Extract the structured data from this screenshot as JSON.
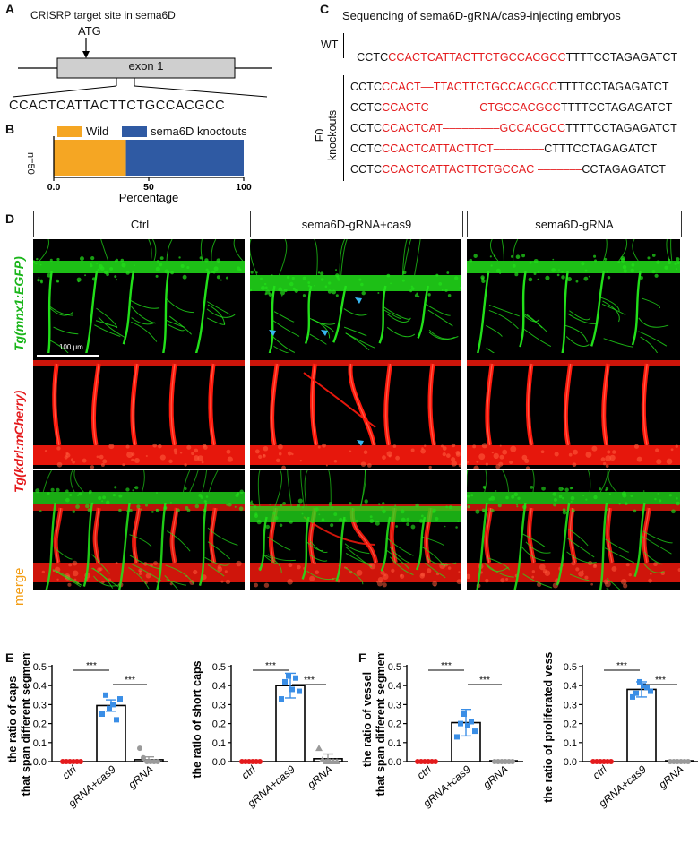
{
  "panels": {
    "A": {
      "letter": "A",
      "title": "CRISRP target site in sema6D",
      "atg": "ATG",
      "exon": "exon 1",
      "target_seq": "CCACTCATTACTTCTGCCACGCC"
    },
    "B": {
      "letter": "B",
      "legend_wild": "Wild",
      "legend_ko": "sema6D knoctouts",
      "n_label": "n=50",
      "xlabel": "Percentage",
      "ticks": [
        "0.0",
        "50",
        "100"
      ],
      "wild_pct": 38,
      "color_wild": "#f5a623",
      "color_ko": "#2f5aa3"
    },
    "C": {
      "letter": "C",
      "title": "Sequencing of sema6D-gRNA/cas9-injecting embryos",
      "wt_label": "WT",
      "f0_label": "F0",
      "ko_label": "knockouts",
      "wt": {
        "pre": "CCTC",
        "red": "CCACTCATTACTTCTGCCACGCC",
        "post": "TTTTCCTAGAGATCT"
      },
      "rows": [
        {
          "pre": "CCTC",
          "red": "CCACT––TTACTTCTGCCACGCC",
          "post": "TTTTCCTAGAGATCT"
        },
        {
          "pre": "CCTC",
          "red": "CCACTC––––––––CTGCCACGCC",
          "post": "TTTTCCTAGAGATCT"
        },
        {
          "pre": "CCTC",
          "red": "CCACTCAT–––––––––GCCACGCC",
          "post": "TTTTCCTAGAGATCT"
        },
        {
          "pre": "CCTC",
          "red": "CCACTCATTACTTCT––––––––",
          "post": "CTTTCCTAGAGATCT"
        },
        {
          "pre": "CCTC",
          "red": "CCACTCATTACTTCTGCCAC –––––––",
          "post": "CCTAGAGATCT"
        }
      ]
    },
    "D": {
      "letter": "D",
      "columns": [
        "Ctrl",
        "sema6D-gRNA+cas9",
        "sema6D-gRNA"
      ],
      "row_labels": [
        "Tg(mnx1:EGFP)",
        "Tg(kdrl:mCherry)",
        "merge"
      ],
      "scale_bar": "100 μm",
      "color_green": "#22e01a",
      "color_red": "#ff1a0d",
      "color_merge_label": "#f39c12",
      "color_arrow": "#38b6f0"
    },
    "E": {
      "letter": "E"
    },
    "F": {
      "letter": "F"
    }
  },
  "chart_data": [
    {
      "type": "bar",
      "ylabel": "the ratio of caps that span different segments",
      "categories": [
        "ctrl",
        "gRNA+cas9",
        "gRNA"
      ],
      "values": [
        0.0,
        0.295,
        0.01
      ],
      "errors": [
        0.0,
        0.03,
        0.015
      ],
      "ylim": [
        0,
        0.5
      ],
      "yticks": [
        "0.0",
        "0.1",
        "0.2",
        "0.3",
        "0.4",
        "0.5"
      ],
      "points": [
        [
          0,
          0,
          0,
          0,
          0,
          0
        ],
        [
          0.25,
          0.35,
          0.28,
          0.3,
          0.22,
          0.33
        ],
        [
          0.07,
          0.02,
          0,
          0,
          0,
          0
        ]
      ],
      "markers": [
        "circle",
        "square",
        "circle"
      ],
      "sig": [
        {
          "from": 0,
          "to": 1,
          "label": "***"
        },
        {
          "from": 1,
          "to": 2,
          "label": "***"
        }
      ]
    },
    {
      "type": "bar",
      "ylabel": "the ratio of short caps",
      "categories": [
        "ctrl",
        "gRNA+cas9",
        "gRNA"
      ],
      "values": [
        0.0,
        0.4,
        0.015
      ],
      "errors": [
        0.0,
        0.065,
        0.025
      ],
      "ylim": [
        0,
        0.5
      ],
      "yticks": [
        "0.0",
        "0.1",
        "0.2",
        "0.3",
        "0.4",
        "0.5"
      ],
      "points": [
        [
          0,
          0,
          0,
          0,
          0,
          0
        ],
        [
          0.33,
          0.42,
          0.45,
          0.38,
          0.44,
          0.37
        ],
        [
          0.07,
          0.01,
          0,
          0,
          0,
          0
        ]
      ],
      "markers": [
        "circle",
        "square",
        "triangle"
      ],
      "sig": [
        {
          "from": 0,
          "to": 1,
          "label": "***"
        },
        {
          "from": 1,
          "to": 2,
          "label": "***"
        }
      ]
    },
    {
      "type": "bar",
      "ylabel": "the ratio of vessel that span different segments",
      "categories": [
        "ctrl",
        "gRNA+cas9",
        "gRNA"
      ],
      "values": [
        0.0,
        0.205,
        0.0
      ],
      "errors": [
        0.0,
        0.07,
        0.0
      ],
      "ylim": [
        0,
        0.5
      ],
      "yticks": [
        "0.0",
        "0.1",
        "0.2",
        "0.3",
        "0.4",
        "0.5"
      ],
      "points": [
        [
          0,
          0,
          0,
          0,
          0,
          0
        ],
        [
          0.13,
          0.2,
          0.25,
          0.19,
          0.21,
          0.16
        ],
        [
          0,
          0,
          0,
          0,
          0,
          0
        ]
      ],
      "markers": [
        "circle",
        "square",
        "circle"
      ],
      "sig": [
        {
          "from": 0,
          "to": 1,
          "label": "***"
        },
        {
          "from": 1,
          "to": 2,
          "label": "***"
        }
      ]
    },
    {
      "type": "bar",
      "ylabel": "the ratio of proliferated vessels",
      "categories": [
        "ctrl",
        "gRNA+cas9",
        "gRNA"
      ],
      "values": [
        0.0,
        0.38,
        0.0
      ],
      "errors": [
        0.0,
        0.04,
        0.0
      ],
      "ylim": [
        0,
        0.5
      ],
      "yticks": [
        "0.0",
        "0.1",
        "0.2",
        "0.3",
        "0.4",
        "0.5"
      ],
      "points": [
        [
          0,
          0,
          0,
          0,
          0,
          0
        ],
        [
          0.34,
          0.36,
          0.42,
          0.4,
          0.39,
          0.37
        ],
        [
          0,
          0,
          0,
          0,
          0,
          0
        ]
      ],
      "markers": [
        "circle",
        "square",
        "circle"
      ],
      "sig": [
        {
          "from": 0,
          "to": 1,
          "label": "***"
        },
        {
          "from": 1,
          "to": 2,
          "label": "***"
        }
      ]
    }
  ]
}
